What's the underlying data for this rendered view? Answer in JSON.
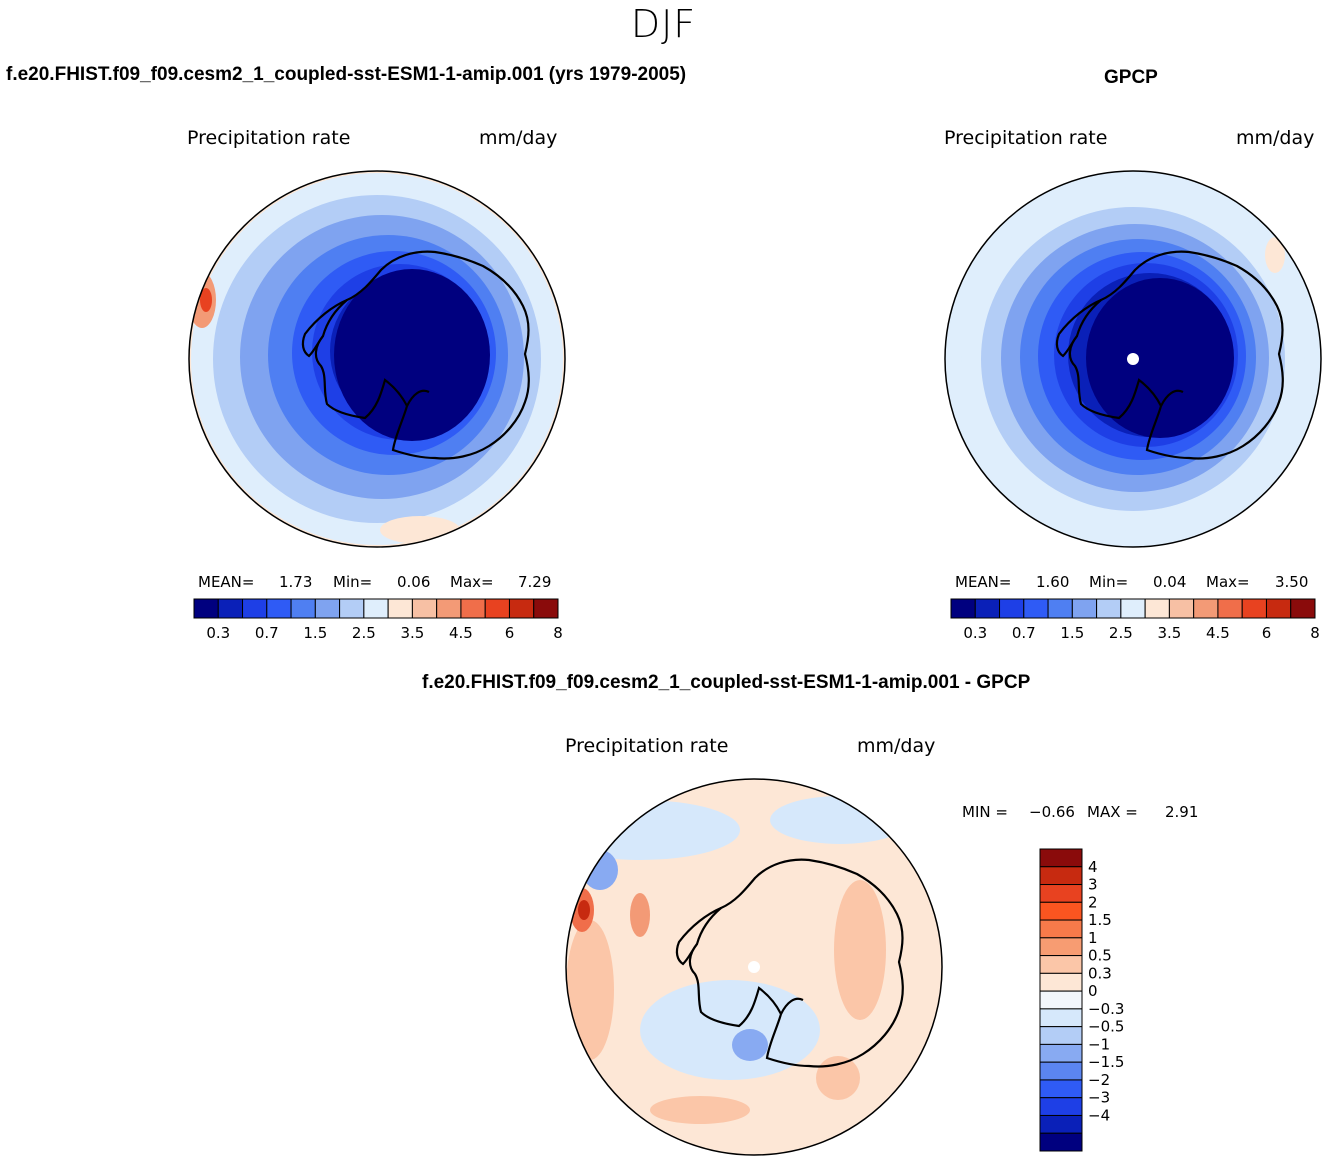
{
  "figure": {
    "title": "DJF"
  },
  "panels": {
    "model": {
      "title": "f.e20.FHIST.f09_f09.cesm2_1_coupled-sst-ESM1-1-amip.001 (yrs 1979-2005)",
      "variable": "Precipitation rate",
      "units": "mm/day",
      "mean_label": "MEAN=",
      "mean": "1.73",
      "min_label": "Min=",
      "min": "0.06",
      "max_label": "Max=",
      "max": "7.29"
    },
    "obs": {
      "title": "GPCP",
      "variable": "Precipitation rate",
      "units": "mm/day",
      "mean_label": "MEAN=",
      "mean": "1.60",
      "min_label": "Min=",
      "min": "0.04",
      "max_label": "Max=",
      "max": "3.50"
    },
    "diff": {
      "title": "f.e20.FHIST.f09_f09.cesm2_1_coupled-sst-ESM1-1-amip.001 - GPCP",
      "variable": "Precipitation rate",
      "units": "mm/day",
      "min_label": "MIN =",
      "min": "−0.66",
      "max_label": "MAX =",
      "max": "2.91"
    }
  },
  "colorbars": {
    "abs_colors": [
      "#00007f",
      "#0a20b8",
      "#1e3fe6",
      "#2f5bf5",
      "#4f7ff2",
      "#7fa3f0",
      "#b3cdf6",
      "#dfeefc",
      "#fde7d6",
      "#f7c0a4",
      "#f39a76",
      "#f06e4a",
      "#e84220",
      "#c72a10",
      "#8a0b0b"
    ],
    "abs_labels": [
      "0.3",
      "0.7",
      "1.5",
      "2.5",
      "3.5",
      "4.5",
      "6",
      "8"
    ],
    "diff_colors": [
      "#8a0b0b",
      "#c72a10",
      "#e84220",
      "#fa5520",
      "#f77a4a",
      "#f79c72",
      "#fbc6a8",
      "#fde7d6",
      "#f2f6fb",
      "#d6e8fb",
      "#b3cdf6",
      "#88aaf2",
      "#5b85f0",
      "#2f5bf5",
      "#1e3fe6",
      "#0a20b8",
      "#00007f"
    ],
    "diff_labels": [
      "4",
      "3",
      "2",
      "1.5",
      "1",
      "0.5",
      "0.3",
      "0",
      "−0.3",
      "−0.5",
      "−1",
      "−1.5",
      "−2",
      "−3",
      "−4"
    ]
  }
}
